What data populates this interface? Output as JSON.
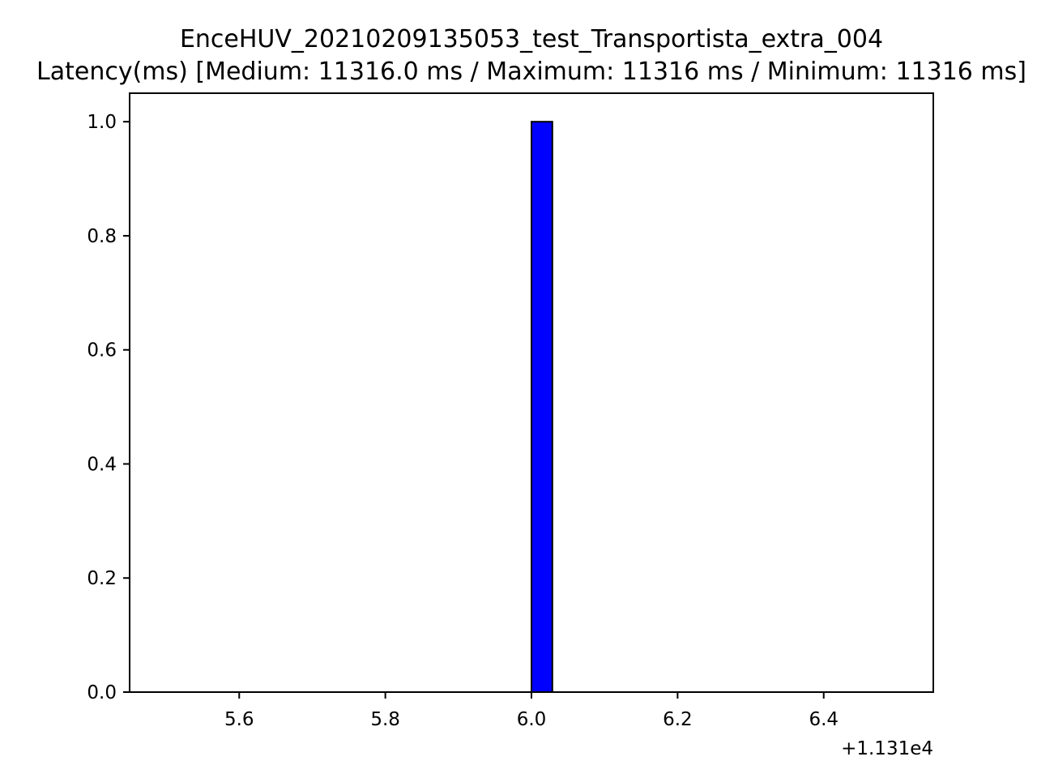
{
  "chart_data": {
    "type": "bar",
    "title": "EnceHUV_20210209135053_test_Transportista_extra_004",
    "subtitle": "Latency(ms) [Medium: 11316.0 ms / Maximum: 11316 ms / Minimum: 11316 ms]",
    "xlabel": "",
    "ylabel": "",
    "x_offset_label": "+1.131e4",
    "x_offset": 11310,
    "xlim": [
      11315.45,
      11316.55
    ],
    "ylim": [
      0,
      1.05
    ],
    "x_ticks": [
      5.6,
      5.8,
      6.0,
      6.2,
      6.4
    ],
    "x_tick_labels": [
      "5.6",
      "5.8",
      "6.0",
      "6.2",
      "6.4"
    ],
    "y_ticks": [
      0.0,
      0.2,
      0.4,
      0.6,
      0.8,
      1.0
    ],
    "y_tick_labels": [
      "0.0",
      "0.2",
      "0.4",
      "0.6",
      "0.8",
      "1.0"
    ],
    "grid": false,
    "bars": [
      {
        "x_start": 11316.0,
        "x_end": 11316.0286,
        "value": 1.0
      }
    ],
    "colors": {
      "bar_fill": "#0000ff",
      "bar_edge": "#000000",
      "axes": "#000000"
    }
  }
}
